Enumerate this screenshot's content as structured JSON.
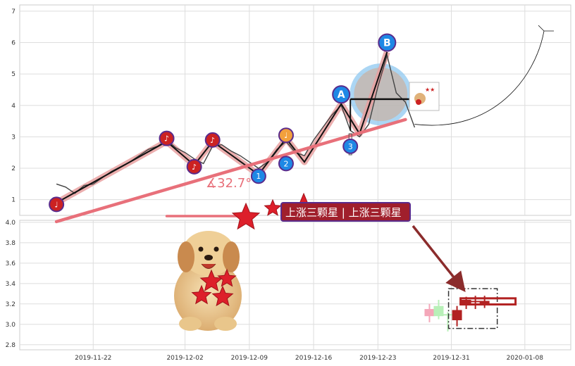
{
  "chart_data": [
    {
      "type": "line",
      "panel": "upper",
      "title": "",
      "xlabel": "",
      "ylabel": "",
      "ylim": [
        0.5,
        7.2
      ],
      "yticks": [
        1,
        2,
        3,
        4,
        5,
        6,
        7
      ],
      "grid": true,
      "series": [
        {
          "role": "price",
          "color": "#444444",
          "points": [
            [
              "2019-11-18",
              1.5
            ],
            [
              "2019-11-19",
              1.4
            ],
            [
              "2019-11-20",
              1.2
            ],
            [
              "2019-11-21",
              1.45
            ],
            [
              "2019-11-22",
              1.5
            ],
            [
              "2019-11-23",
              1.7
            ],
            [
              "2019-11-24",
              1.9
            ],
            [
              "2019-11-25",
              2.05
            ],
            [
              "2019-11-26",
              2.2
            ],
            [
              "2019-11-27",
              2.4
            ],
            [
              "2019-11-28",
              2.6
            ],
            [
              "2019-11-29",
              2.7
            ],
            [
              "2019-11-30",
              2.9
            ],
            [
              "2019-12-01",
              2.65
            ],
            [
              "2019-12-02",
              2.5
            ],
            [
              "2019-12-03",
              2.3
            ],
            [
              "2019-12-04",
              2.15
            ],
            [
              "2019-12-05",
              2.7
            ],
            [
              "2019-12-06",
              2.75
            ],
            [
              "2019-12-07",
              2.55
            ],
            [
              "2019-12-08",
              2.4
            ],
            [
              "2019-12-09",
              2.2
            ],
            [
              "2019-12-10",
              2.0
            ],
            [
              "2019-12-11",
              2.2
            ],
            [
              "2019-12-12",
              2.6
            ],
            [
              "2019-12-13",
              2.85
            ],
            [
              "2019-12-14",
              2.5
            ],
            [
              "2019-12-15",
              2.4
            ],
            [
              "2019-12-16",
              2.9
            ],
            [
              "2019-12-17",
              3.3
            ],
            [
              "2019-12-18",
              3.7
            ],
            [
              "2019-12-19",
              4.0
            ],
            [
              "2019-12-20",
              3.2
            ],
            [
              "2019-12-21",
              3.0
            ],
            [
              "2019-12-22",
              3.4
            ],
            [
              "2019-12-23",
              4.6
            ],
            [
              "2019-12-24",
              5.6
            ],
            [
              "2019-12-25",
              4.4
            ],
            [
              "2019-12-26",
              4.1
            ],
            [
              "2019-12-27",
              3.3
            ]
          ]
        },
        {
          "role": "zigzag",
          "color": "#111111",
          "points": [
            [
              "2019-11-18",
              0.9
            ],
            [
              "2019-11-30",
              2.85
            ],
            [
              "2019-12-03",
              2.1
            ],
            [
              "2019-12-05",
              2.85
            ],
            [
              "2019-12-10",
              1.8
            ],
            [
              "2019-12-13",
              2.95
            ],
            [
              "2019-12-15",
              2.2
            ],
            [
              "2019-12-19",
              4.05
            ],
            [
              "2019-12-21",
              3.1
            ],
            [
              "2019-12-24",
              5.7
            ]
          ]
        },
        {
          "role": "trendline",
          "color": "#e8707a",
          "points": [
            [
              "2019-11-18",
              0.3
            ],
            [
              "2019-12-26",
              3.55
            ]
          ]
        }
      ],
      "markers": [
        {
          "label": "♩",
          "x": "2019-11-18",
          "y": 0.85,
          "shape": "note",
          "color": "#cc2222"
        },
        {
          "label": "♪",
          "x": "2019-11-30",
          "y": 2.95,
          "shape": "note",
          "color": "#cc2222"
        },
        {
          "label": "♪",
          "x": "2019-12-03",
          "y": 2.05,
          "shape": "note",
          "color": "#cc2222"
        },
        {
          "label": "♪",
          "x": "2019-12-05",
          "y": 2.9,
          "shape": "note",
          "color": "#cc2222"
        },
        {
          "label": "1",
          "x": "2019-12-10",
          "y": 1.75,
          "shape": "number",
          "color": "#1e88e5"
        },
        {
          "label": "♩",
          "x": "2019-12-13",
          "y": 3.05,
          "shape": "note",
          "color": "#f2a03d"
        },
        {
          "label": "2",
          "x": "2019-12-13",
          "y": 2.15,
          "shape": "number",
          "color": "#1e88e5"
        },
        {
          "label": "A",
          "x": "2019-12-19",
          "y": 4.35,
          "shape": "letter",
          "color": "#1e88e5"
        },
        {
          "label": "3",
          "x": "2019-12-20",
          "y": 2.7,
          "shape": "number",
          "color": "#1e88e5"
        },
        {
          "label": "B",
          "x": "2019-12-24",
          "y": 6.0,
          "shape": "letter",
          "color": "#1e88e5"
        }
      ],
      "annotations": [
        {
          "kind": "angle",
          "text": "∡32.7°"
        }
      ]
    },
    {
      "type": "candlestick",
      "panel": "lower",
      "title": "",
      "xlabel": "",
      "ylabel": "",
      "ylim": [
        2.75,
        4.02
      ],
      "yticks": [
        "2.8",
        "3.0",
        "3.2",
        "3.4",
        "3.6",
        "3.8",
        "4.0"
      ],
      "grid": true,
      "candles": [
        {
          "date": "2019-12-28",
          "open": 3.15,
          "close": 3.08,
          "high": 3.2,
          "low": 3.02,
          "color": "#f4a7b9"
        },
        {
          "date": "2019-12-29",
          "open": 3.08,
          "close": 3.18,
          "high": 3.24,
          "low": 3.05,
          "color": "#b8f0b8"
        },
        {
          "date": "2019-12-30",
          "open": 3.1,
          "close": 3.09,
          "high": 3.12,
          "low": 2.93,
          "color": "#b8f0b8"
        },
        {
          "date": "2019-12-31",
          "open": 3.14,
          "close": 3.04,
          "high": 3.18,
          "low": 2.98,
          "color": "#b22222"
        },
        {
          "date": "2020-01-01",
          "open": 3.24,
          "close": 3.19,
          "high": 3.27,
          "low": 3.15,
          "color": "#b22222"
        },
        {
          "date": "2020-01-02",
          "open": 3.22,
          "close": 3.23,
          "high": 3.28,
          "low": 3.15,
          "color": "#b22222"
        },
        {
          "date": "2020-01-03",
          "open": 3.23,
          "close": 3.2,
          "high": 3.28,
          "low": 3.16,
          "color": "#b22222"
        }
      ]
    }
  ],
  "x_axis": {
    "domain": [
      "2019-11-14",
      "2020-01-13"
    ],
    "tick_labels": [
      "2019-11-22",
      "2019-12-02",
      "2019-12-09",
      "2019-12-16",
      "2019-12-23",
      "2019-12-31",
      "2020-01-08"
    ],
    "tick_dates": [
      "2019-11-22",
      "2019-12-02",
      "2019-12-09",
      "2019-12-16",
      "2019-12-23",
      "2019-12-31",
      "2020-01-08"
    ]
  },
  "banner": {
    "text": "上涨三颗星 | 上涨三颗星",
    "bg_color": "#a01f2c",
    "border_color": "#5a2b8c"
  },
  "colors": {
    "grid": "#dddddd",
    "axis": "#666666",
    "price": "#444444",
    "zigzag_shadow": "#e8a0a0",
    "trendline": "#e8707a",
    "highlight_circle": "#8fc8f0",
    "arrow": "#8b2c2c"
  },
  "icons": {
    "stars": "red-star-icon",
    "dog": "dog-with-hearts-icon",
    "thumbnail": "dog-thumbnail-icon"
  }
}
